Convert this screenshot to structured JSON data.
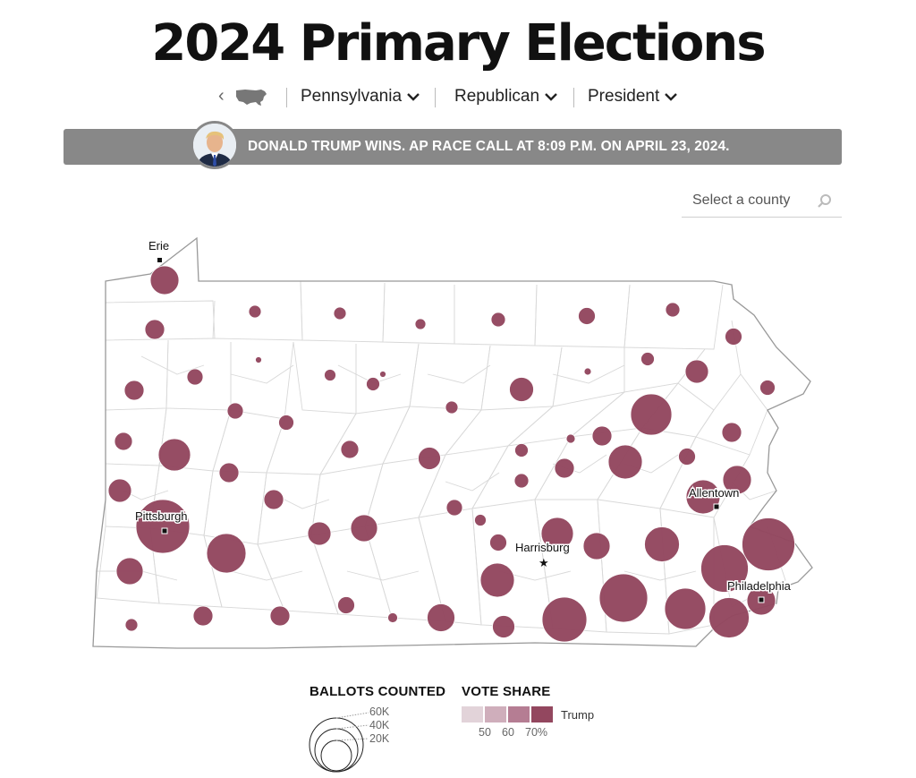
{
  "title": "2024 Primary Elections",
  "nav": {
    "state": "Pennsylvania",
    "party": "Republican",
    "race": "President"
  },
  "banner": {
    "text": "DONALD TRUMP WINS. AP RACE CALL AT 8:09 P.M. ON APRIL 23, 2024."
  },
  "search": {
    "placeholder": "Select a county"
  },
  "map": {
    "cities": {
      "erie": "Erie",
      "pittsburgh": "Pittsburgh",
      "harrisburg": "Harrisburg",
      "allentown": "Allentown",
      "philadelphia": "Philadelphia"
    },
    "bubble_color": "#93475f"
  },
  "legend": {
    "ballots_title": "BALLOTS COUNTED",
    "ballots_sizes": [
      "60K",
      "40K",
      "20K"
    ],
    "share_title": "VOTE SHARE",
    "share_ticks": [
      "50",
      "60",
      "70%"
    ],
    "share_candidate": "Trump",
    "share_colors": [
      "#e2d3d9",
      "#cfaebb",
      "#b57d93",
      "#93475f"
    ]
  }
}
